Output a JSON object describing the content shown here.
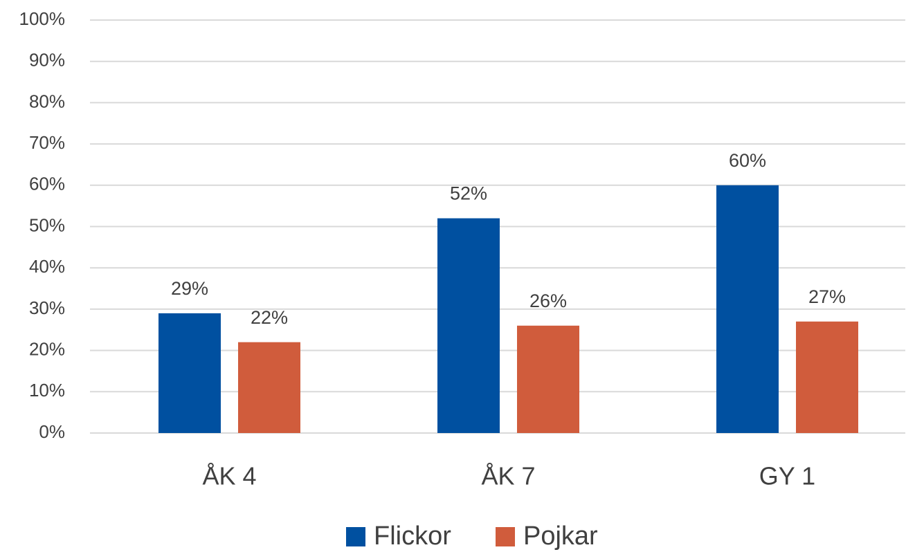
{
  "chart_data": {
    "type": "bar",
    "categories": [
      "ÅK 4",
      "ÅK 7",
      "GY 1"
    ],
    "series": [
      {
        "name": "Flickor",
        "color": "#0050a0",
        "values": [
          29,
          52,
          60
        ],
        "value_labels": [
          "29%",
          "52%",
          "60%"
        ]
      },
      {
        "name": "Pojkar",
        "color": "#d05c3c",
        "values": [
          22,
          26,
          27
        ],
        "value_labels": [
          "22%",
          "26%",
          "27%"
        ]
      }
    ],
    "ylim": [
      0,
      100
    ],
    "yticks": [
      {
        "value": 0,
        "label": "0%"
      },
      {
        "value": 10,
        "label": "10%"
      },
      {
        "value": 20,
        "label": "20%"
      },
      {
        "value": 30,
        "label": "30%"
      },
      {
        "value": 40,
        "label": "40%"
      },
      {
        "value": 50,
        "label": "50%"
      },
      {
        "value": 60,
        "label": "60%"
      },
      {
        "value": 70,
        "label": "70%"
      },
      {
        "value": 80,
        "label": "80%"
      },
      {
        "value": 90,
        "label": "90%"
      },
      {
        "value": 100,
        "label": "100%"
      }
    ],
    "grid": true,
    "legend": "bottom"
  }
}
